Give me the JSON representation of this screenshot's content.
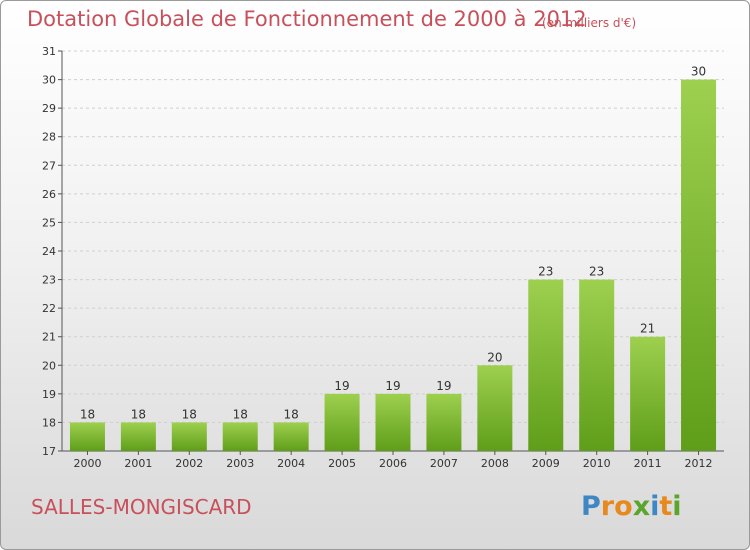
{
  "header": {
    "title": "Dotation Globale de Fonctionnement de 2000 à 2012",
    "subtitle": "(en milliers d'€)"
  },
  "commune": "SALLES-MONGISCARD",
  "logo": {
    "letters": [
      {
        "char": "P",
        "color": "#3f87c4"
      },
      {
        "char": "r",
        "color": "#e8891d"
      },
      {
        "char": "o",
        "color": "#e8891d"
      },
      {
        "char": "x",
        "color": "#5aa52b"
      },
      {
        "char": "i",
        "color": "#3f87c4"
      },
      {
        "char": "t",
        "color": "#e8891d"
      },
      {
        "char": "i",
        "color": "#5aa52b"
      }
    ]
  },
  "colors": {
    "bar_light": "#9dd04e",
    "bar_dark": "#5f9e1a",
    "title": "#c8505a",
    "grid": "#cfcfcf",
    "axis": "#555555"
  },
  "chart_data": {
    "type": "bar",
    "title": "Dotation Globale de Fonctionnement de 2000 à 2012",
    "subtitle": "(en milliers d'€)",
    "categories": [
      "2000",
      "2001",
      "2002",
      "2003",
      "2004",
      "2005",
      "2006",
      "2007",
      "2008",
      "2009",
      "2010",
      "2011",
      "2012"
    ],
    "values": [
      18,
      18,
      18,
      18,
      18,
      19,
      19,
      19,
      20,
      23,
      23,
      21,
      30
    ],
    "ylim": [
      17,
      31
    ],
    "yticks": [
      "17",
      "18",
      "19",
      "20",
      "21",
      "22",
      "23",
      "24",
      "25",
      "26",
      "27",
      "28",
      "29",
      "30",
      "31"
    ],
    "grid": true,
    "legend": false
  }
}
